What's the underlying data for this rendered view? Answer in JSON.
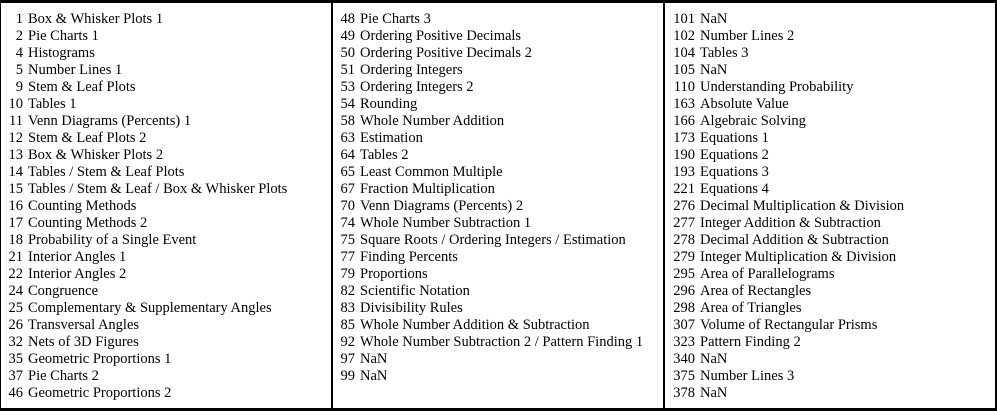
{
  "colors": {
    "background": "#ffffff",
    "text": "#000000",
    "border": "#000000"
  },
  "table": {
    "columns": [
      {
        "items": [
          {
            "id": "1",
            "label": "Box & Whisker Plots 1"
          },
          {
            "id": "2",
            "label": "Pie Charts 1"
          },
          {
            "id": "4",
            "label": "Histograms"
          },
          {
            "id": "5",
            "label": "Number Lines 1"
          },
          {
            "id": "9",
            "label": "Stem & Leaf Plots"
          },
          {
            "id": "10",
            "label": "Tables 1"
          },
          {
            "id": "11",
            "label": "Venn Diagrams (Percents) 1"
          },
          {
            "id": "12",
            "label": "Stem & Leaf Plots 2"
          },
          {
            "id": "13",
            "label": "Box & Whisker Plots 2"
          },
          {
            "id": "14",
            "label": "Tables / Stem & Leaf Plots"
          },
          {
            "id": "15",
            "label": "Tables / Stem & Leaf / Box & Whisker Plots"
          },
          {
            "id": "16",
            "label": "Counting Methods"
          },
          {
            "id": "17",
            "label": "Counting Methods 2"
          },
          {
            "id": "18",
            "label": "Probability of a Single Event"
          },
          {
            "id": "21",
            "label": "Interior Angles 1"
          },
          {
            "id": "22",
            "label": "Interior Angles 2"
          },
          {
            "id": "24",
            "label": "Congruence"
          },
          {
            "id": "25",
            "label": "Complementary & Supplementary Angles"
          },
          {
            "id": "26",
            "label": "Transversal Angles"
          },
          {
            "id": "32",
            "label": "Nets of 3D Figures"
          },
          {
            "id": "35",
            "label": "Geometric Proportions 1"
          },
          {
            "id": "37",
            "label": "Pie Charts 2"
          },
          {
            "id": "46",
            "label": "Geometric Proportions 2"
          }
        ]
      },
      {
        "items": [
          {
            "id": "48",
            "label": "Pie Charts 3"
          },
          {
            "id": "49",
            "label": "Ordering Positive Decimals"
          },
          {
            "id": "50",
            "label": "Ordering Positive Decimals 2"
          },
          {
            "id": "51",
            "label": "Ordering Integers"
          },
          {
            "id": "53",
            "label": "Ordering Integers 2"
          },
          {
            "id": "54",
            "label": "Rounding"
          },
          {
            "id": "58",
            "label": "Whole Number Addition"
          },
          {
            "id": "63",
            "label": "Estimation"
          },
          {
            "id": "64",
            "label": "Tables 2"
          },
          {
            "id": "65",
            "label": "Least Common Multiple"
          },
          {
            "id": "67",
            "label": "Fraction Multiplication"
          },
          {
            "id": "70",
            "label": "Venn Diagrams (Percents) 2"
          },
          {
            "id": "74",
            "label": "Whole Number Subtraction 1"
          },
          {
            "id": "75",
            "label": "Square Roots / Ordering Integers / Estimation"
          },
          {
            "id": "77",
            "label": "Finding Percents"
          },
          {
            "id": "79",
            "label": "Proportions"
          },
          {
            "id": "82",
            "label": "Scientific Notation"
          },
          {
            "id": "83",
            "label": "Divisibility Rules"
          },
          {
            "id": "85",
            "label": "Whole Number Addition & Subtraction"
          },
          {
            "id": "92",
            "label": "Whole Number Subtraction 2 / Pattern Finding 1"
          },
          {
            "id": "97",
            "label": "NaN"
          },
          {
            "id": "99",
            "label": "NaN"
          }
        ]
      },
      {
        "items": [
          {
            "id": "101",
            "label": "NaN"
          },
          {
            "id": "102",
            "label": "Number Lines 2"
          },
          {
            "id": "104",
            "label": "Tables 3"
          },
          {
            "id": "105",
            "label": "NaN"
          },
          {
            "id": "110",
            "label": "Understanding Probability"
          },
          {
            "id": "163",
            "label": "Absolute Value"
          },
          {
            "id": "166",
            "label": "Algebraic Solving"
          },
          {
            "id": "173",
            "label": "Equations 1"
          },
          {
            "id": "190",
            "label": "Equations 2"
          },
          {
            "id": "193",
            "label": "Equations 3"
          },
          {
            "id": "221",
            "label": "Equations 4"
          },
          {
            "id": "276",
            "label": "Decimal Multiplication & Division"
          },
          {
            "id": "277",
            "label": "Integer Addition & Subtraction"
          },
          {
            "id": "278",
            "label": "Decimal Addition & Subtraction"
          },
          {
            "id": "279",
            "label": "Integer Multiplication & Division"
          },
          {
            "id": "295",
            "label": "Area of Parallelograms"
          },
          {
            "id": "296",
            "label": "Area of Rectangles"
          },
          {
            "id": "298",
            "label": "Area of Triangles"
          },
          {
            "id": "307",
            "label": "Volume of Rectangular Prisms"
          },
          {
            "id": "323",
            "label": "Pattern Finding 2"
          },
          {
            "id": "340",
            "label": "NaN"
          },
          {
            "id": "375",
            "label": "Number Lines 3"
          },
          {
            "id": "378",
            "label": "NaN"
          }
        ]
      }
    ]
  }
}
